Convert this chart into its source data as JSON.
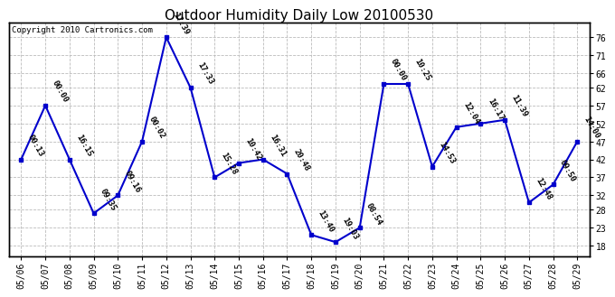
{
  "title": "Outdoor Humidity Daily Low 20100530",
  "copyright": "Copyright 2010 Cartronics.com",
  "x_labels": [
    "05/06",
    "05/07",
    "05/08",
    "05/09",
    "05/10",
    "05/11",
    "05/12",
    "05/13",
    "05/14",
    "05/15",
    "05/16",
    "05/17",
    "05/18",
    "05/19",
    "05/20",
    "05/21",
    "05/22",
    "05/23",
    "05/24",
    "05/25",
    "05/26",
    "05/27",
    "05/28",
    "05/29"
  ],
  "y_values": [
    42,
    57,
    42,
    27,
    32,
    47,
    76,
    62,
    37,
    41,
    42,
    38,
    21,
    19,
    23,
    63,
    63,
    40,
    51,
    52,
    53,
    30,
    35,
    47
  ],
  "times": [
    "00:13",
    "00:00",
    "16:15",
    "09:35",
    "09:16",
    "00:02",
    "17:39",
    "17:33",
    "15:28",
    "10:42",
    "16:31",
    "20:48",
    "13:40",
    "19:03",
    "08:54",
    "00:00",
    "10:25",
    "14:53",
    "12:04",
    "16:17",
    "11:39",
    "12:48",
    "09:50",
    "14:00"
  ],
  "line_color": "#0000cc",
  "marker_color": "#0000cc",
  "bg_color": "#ffffff",
  "grid_color": "#bbbbbb",
  "ylim": [
    15,
    80
  ],
  "yticks": [
    18,
    23,
    28,
    32,
    37,
    42,
    47,
    52,
    57,
    62,
    66,
    71,
    76
  ],
  "title_fontsize": 11,
  "tick_fontsize": 7,
  "annot_fontsize": 6.5,
  "copyright_fontsize": 6.5
}
